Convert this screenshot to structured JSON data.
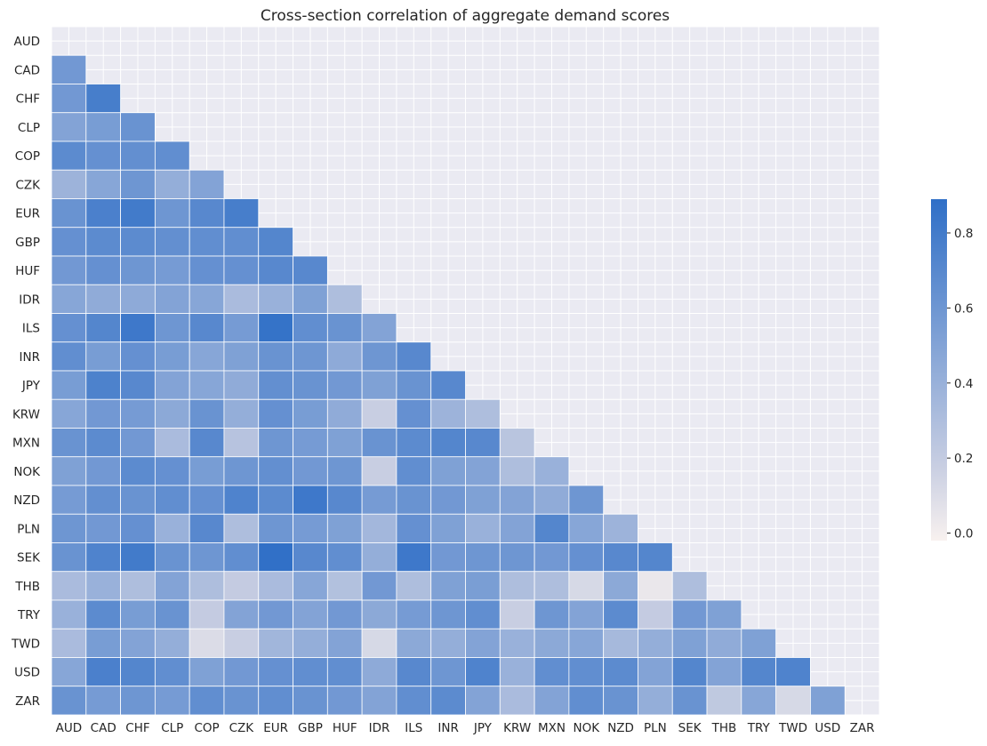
{
  "chart_data": {
    "type": "heatmap",
    "title": "Cross-section correlation of aggregate demand scores",
    "xlabel": "",
    "ylabel": "",
    "mask": "upper-triangle-including-diagonal",
    "labels": [
      "AUD",
      "CAD",
      "CHF",
      "CLP",
      "COP",
      "CZK",
      "EUR",
      "GBP",
      "HUF",
      "IDR",
      "ILS",
      "INR",
      "JPY",
      "KRW",
      "MXN",
      "NOK",
      "NZD",
      "PLN",
      "SEK",
      "THB",
      "TRY",
      "TWD",
      "USD",
      "ZAR"
    ],
    "matrix": [
      [],
      [
        0.58
      ],
      [
        0.58,
        0.78
      ],
      [
        0.5,
        0.55,
        0.62
      ],
      [
        0.68,
        0.64,
        0.65,
        0.66
      ],
      [
        0.38,
        0.48,
        0.6,
        0.42,
        0.5
      ],
      [
        0.62,
        0.76,
        0.8,
        0.6,
        0.7,
        0.78
      ],
      [
        0.64,
        0.68,
        0.68,
        0.65,
        0.66,
        0.66,
        0.72
      ],
      [
        0.58,
        0.64,
        0.6,
        0.56,
        0.64,
        0.64,
        0.7,
        0.7
      ],
      [
        0.48,
        0.44,
        0.45,
        0.5,
        0.48,
        0.32,
        0.4,
        0.52,
        0.3
      ],
      [
        0.64,
        0.72,
        0.82,
        0.6,
        0.7,
        0.56,
        0.86,
        0.66,
        0.62,
        0.5
      ],
      [
        0.66,
        0.55,
        0.64,
        0.55,
        0.48,
        0.52,
        0.62,
        0.6,
        0.45,
        0.6,
        0.7
      ],
      [
        0.55,
        0.75,
        0.7,
        0.5,
        0.48,
        0.44,
        0.65,
        0.62,
        0.58,
        0.52,
        0.62,
        0.7
      ],
      [
        0.48,
        0.58,
        0.56,
        0.46,
        0.62,
        0.42,
        0.64,
        0.55,
        0.44,
        0.18,
        0.64,
        0.38,
        0.3
      ],
      [
        0.62,
        0.68,
        0.58,
        0.32,
        0.7,
        0.26,
        0.6,
        0.56,
        0.52,
        0.62,
        0.68,
        0.72,
        0.7,
        0.25
      ],
      [
        0.52,
        0.58,
        0.68,
        0.64,
        0.55,
        0.6,
        0.65,
        0.58,
        0.6,
        0.18,
        0.66,
        0.52,
        0.5,
        0.3,
        0.4
      ],
      [
        0.56,
        0.65,
        0.62,
        0.66,
        0.64,
        0.74,
        0.68,
        0.82,
        0.7,
        0.56,
        0.62,
        0.58,
        0.52,
        0.5,
        0.44,
        0.6
      ],
      [
        0.6,
        0.58,
        0.64,
        0.4,
        0.7,
        0.3,
        0.6,
        0.56,
        0.52,
        0.35,
        0.64,
        0.52,
        0.4,
        0.5,
        0.72,
        0.48,
        0.38
      ],
      [
        0.62,
        0.74,
        0.8,
        0.62,
        0.6,
        0.66,
        0.88,
        0.7,
        0.66,
        0.42,
        0.82,
        0.58,
        0.6,
        0.6,
        0.58,
        0.64,
        0.7,
        0.72
      ],
      [
        0.32,
        0.4,
        0.3,
        0.5,
        0.3,
        0.2,
        0.32,
        0.48,
        0.28,
        0.58,
        0.3,
        0.52,
        0.54,
        0.3,
        0.3,
        0.12,
        0.46,
        0.04,
        0.3
      ],
      [
        0.4,
        0.68,
        0.55,
        0.62,
        0.2,
        0.5,
        0.58,
        0.5,
        0.58,
        0.46,
        0.56,
        0.6,
        0.66,
        0.18,
        0.6,
        0.5,
        0.68,
        0.2,
        0.58,
        0.52
      ],
      [
        0.32,
        0.55,
        0.5,
        0.42,
        0.1,
        0.18,
        0.36,
        0.42,
        0.5,
        0.12,
        0.46,
        0.42,
        0.5,
        0.4,
        0.46,
        0.48,
        0.34,
        0.42,
        0.52,
        0.44,
        0.52
      ],
      [
        0.48,
        0.76,
        0.72,
        0.66,
        0.52,
        0.58,
        0.64,
        0.66,
        0.66,
        0.45,
        0.7,
        0.6,
        0.74,
        0.4,
        0.66,
        0.66,
        0.68,
        0.5,
        0.72,
        0.5,
        0.72,
        0.74
      ],
      [
        0.62,
        0.56,
        0.6,
        0.56,
        0.66,
        0.62,
        0.66,
        0.62,
        0.58,
        0.5,
        0.66,
        0.68,
        0.5,
        0.32,
        0.5,
        0.66,
        0.62,
        0.42,
        0.62,
        0.22,
        0.48,
        0.12,
        0.52
      ]
    ],
    "colorbar": {
      "vmin": -0.02,
      "vmax": 0.89,
      "ticks": [
        0.0,
        0.2,
        0.4,
        0.6,
        0.8
      ],
      "tick_labels": [
        "0.0",
        "0.2",
        "0.4",
        "0.6",
        "0.8"
      ],
      "colors": [
        "#f8f1ef",
        "#2f6fc7"
      ]
    },
    "background_color": "#eaeaf2",
    "grid": true
  }
}
